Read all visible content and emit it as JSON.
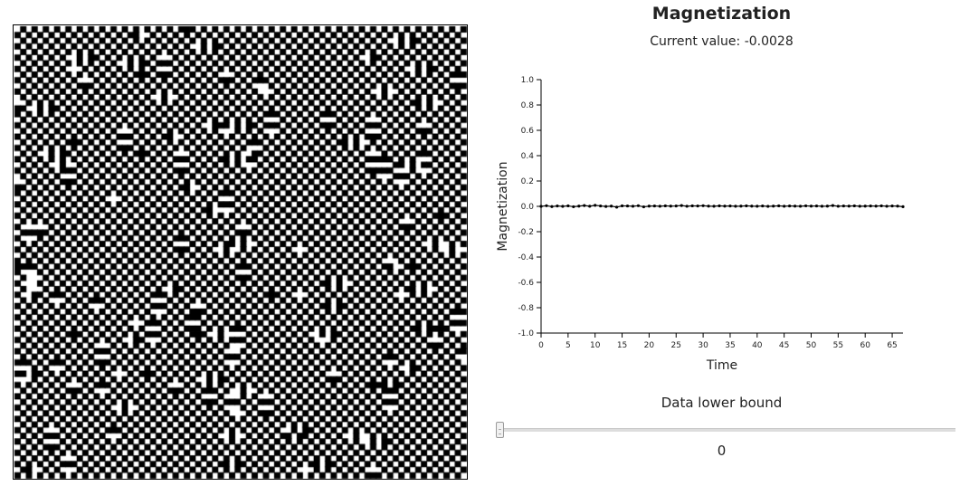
{
  "lattice": {
    "size": 80,
    "pattern": "antiferromagnetic checkerboard with domain defects",
    "spin_up_color": "#ffffff",
    "spin_down_color": "#000000"
  },
  "panel": {
    "title": "Magnetization",
    "current_value_label": "Current value: -0.0028",
    "bound_label": "Data lower bound",
    "bound_value": "0",
    "slider_value": 0
  },
  "chart_data": {
    "type": "line",
    "xlabel": "Time",
    "ylabel": "Magnetization",
    "xlim": [
      0,
      67
    ],
    "ylim": [
      -1.0,
      1.0
    ],
    "xticks": [
      0,
      5,
      10,
      15,
      20,
      25,
      30,
      35,
      40,
      45,
      50,
      55,
      60,
      65
    ],
    "yticks": [
      -1.0,
      -0.8,
      -0.6,
      -0.4,
      -0.2,
      0.0,
      0.2,
      0.4,
      0.6,
      0.8,
      1.0
    ],
    "ytick_labels": [
      "-1.0",
      "-0.8",
      "-0.6",
      "-0.4",
      "-0.2",
      "0.0",
      "0.2",
      "0.4",
      "0.6",
      "0.8",
      "1.0"
    ],
    "grid": false,
    "series": [
      {
        "x": [
          0,
          1,
          2,
          3,
          4,
          5,
          6,
          7,
          8,
          9,
          10,
          11,
          12,
          13,
          14,
          15,
          16,
          17,
          18,
          19,
          20,
          21,
          22,
          23,
          24,
          25,
          26,
          27,
          28,
          29,
          30,
          31,
          32,
          33,
          34,
          35,
          36,
          37,
          38,
          39,
          40,
          41,
          42,
          43,
          44,
          45,
          46,
          47,
          48,
          49,
          50,
          51,
          52,
          53,
          54,
          55,
          56,
          57,
          58,
          59,
          60,
          61,
          62,
          63,
          64,
          65,
          66,
          67
        ],
        "values": [
          0.0,
          0.005,
          -0.002,
          0.003,
          0.0,
          0.004,
          -0.003,
          0.002,
          0.006,
          0.001,
          0.008,
          0.003,
          -0.001,
          0.002,
          -0.006,
          0.004,
          0.003,
          0.001,
          0.005,
          -0.004,
          0.002,
          0.003,
          0.001,
          0.004,
          0.002,
          0.003,
          0.006,
          0.001,
          0.004,
          0.003,
          0.005,
          0.002,
          0.001,
          0.004,
          0.002,
          0.003,
          0.001,
          0.002,
          0.004,
          0.002,
          0.001,
          0.003,
          0.0,
          0.002,
          0.004,
          0.001,
          0.003,
          0.002,
          0.001,
          0.004,
          0.002,
          0.003,
          0.001,
          0.002,
          0.006,
          0.001,
          0.003,
          0.002,
          0.004,
          0.001,
          0.002,
          0.003,
          0.002,
          0.004,
          0.001,
          0.003,
          0.002,
          -0.0028
        ],
        "color": "#000000"
      }
    ]
  }
}
